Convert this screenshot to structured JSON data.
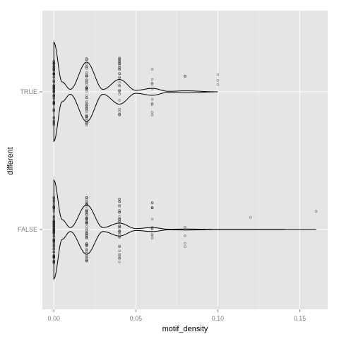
{
  "chart_data": {
    "type": "violin",
    "xlabel": "motif_density",
    "ylabel": "different",
    "categories": [
      "FALSE",
      "TRUE"
    ],
    "xlim": [
      -0.007,
      0.167
    ],
    "x_ticks": [
      0.0,
      0.05,
      0.1,
      0.15
    ],
    "x_tick_labels": [
      "0.00",
      "0.05",
      "0.10",
      "0.15"
    ],
    "grid": true,
    "background": "#e5e5e5",
    "gridline_color": "#ffffff",
    "point_color": "#000000",
    "violin_outline_color": "#000000",
    "series": [
      {
        "category": "TRUE",
        "max_density_value": 0.1,
        "density_profile": [
          {
            "x": 0.0,
            "w": 1.0
          },
          {
            "x": 0.005,
            "w": 0.2
          },
          {
            "x": 0.01,
            "w": 0.05
          },
          {
            "x": 0.02,
            "w": 0.6
          },
          {
            "x": 0.03,
            "w": 0.05
          },
          {
            "x": 0.04,
            "w": 0.25
          },
          {
            "x": 0.05,
            "w": 0.03
          },
          {
            "x": 0.06,
            "w": 0.07
          },
          {
            "x": 0.07,
            "w": 0.01
          },
          {
            "x": 0.08,
            "w": 0.02
          },
          {
            "x": 0.1,
            "w": 0.0
          }
        ],
        "points": [
          {
            "x": 0.0,
            "n": 60
          },
          {
            "x": 0.02,
            "n": 50
          },
          {
            "x": 0.04,
            "n": 30
          },
          {
            "x": 0.06,
            "n": 10
          },
          {
            "x": 0.08,
            "n": 2
          },
          {
            "x": 0.1,
            "n": 3
          }
        ]
      },
      {
        "category": "FALSE",
        "max_density_value": 0.16,
        "density_profile": [
          {
            "x": 0.0,
            "w": 1.0
          },
          {
            "x": 0.005,
            "w": 0.2
          },
          {
            "x": 0.01,
            "w": 0.04
          },
          {
            "x": 0.02,
            "w": 0.5
          },
          {
            "x": 0.03,
            "w": 0.04
          },
          {
            "x": 0.04,
            "w": 0.13
          },
          {
            "x": 0.05,
            "w": 0.02
          },
          {
            "x": 0.06,
            "w": 0.04
          },
          {
            "x": 0.07,
            "w": 0.005
          },
          {
            "x": 0.08,
            "w": 0.01
          },
          {
            "x": 0.1,
            "w": 0.002
          },
          {
            "x": 0.12,
            "w": 0.002
          },
          {
            "x": 0.16,
            "w": 0.0
          }
        ],
        "points": [
          {
            "x": 0.0,
            "n": 70
          },
          {
            "x": 0.02,
            "n": 60
          },
          {
            "x": 0.04,
            "n": 35
          },
          {
            "x": 0.06,
            "n": 12
          },
          {
            "x": 0.08,
            "n": 4
          },
          {
            "x": 0.12,
            "n": 1
          },
          {
            "x": 0.16,
            "n": 1
          }
        ]
      }
    ]
  }
}
